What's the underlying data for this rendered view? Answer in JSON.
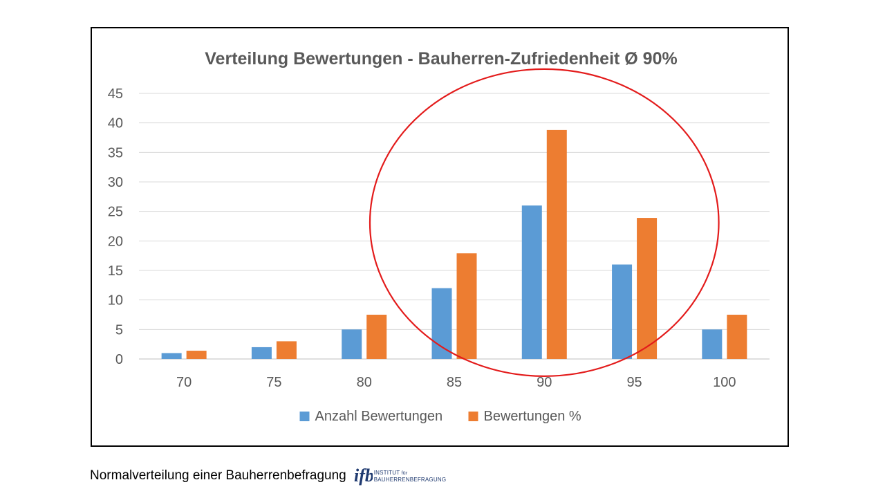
{
  "chart_data": {
    "type": "bar",
    "title": "Verteilung Bewertungen - Bauherren-Zufriedenheit Ø 90%",
    "categories": [
      "70",
      "75",
      "80",
      "85",
      "90",
      "95",
      "100"
    ],
    "series": [
      {
        "name": "Anzahl Bewertungen",
        "color": "#5b9bd5",
        "values": [
          1,
          2,
          5,
          12,
          26,
          16,
          5
        ]
      },
      {
        "name": "Bewertungen %",
        "color": "#ed7d31",
        "values": [
          1.4,
          3,
          7.5,
          17.9,
          38.8,
          23.9,
          7.5
        ]
      }
    ],
    "ylim": [
      0,
      45
    ],
    "yticks": [
      "0",
      "5",
      "10",
      "15",
      "20",
      "25",
      "30",
      "35",
      "40",
      "45"
    ],
    "grid": true,
    "legend_position": "bottom",
    "annotation": {
      "type": "ellipse",
      "color": "#e31b1b",
      "around_categories": [
        "85",
        "90",
        "95"
      ]
    }
  },
  "caption": "Normalverteilung einer Bauherrenbefragung",
  "logo": {
    "mark": "ifb",
    "line1": "INSTITUT",
    "line1_small": "für",
    "line2": "BAUHERRENBEFRAGUNG",
    "color": "#1f3a70"
  }
}
